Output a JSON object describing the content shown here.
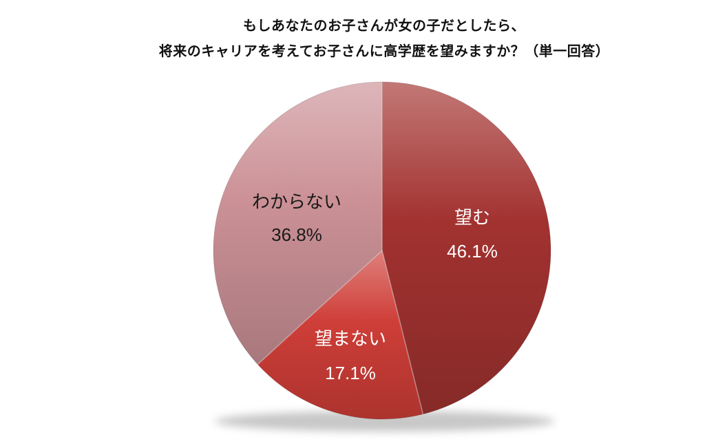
{
  "title": {
    "line1": "もしあなたのお子さんが女の子だとしたら、",
    "line2": "将来のキャリアを考えてお子さんに高学歴を望みますか？（単一回答）"
  },
  "chart_data": {
    "type": "pie",
    "title": "もしあなたのお子さんが女の子だとしたら、将来のキャリアを考えてお子さんに高学歴を望みますか？（単一回答）",
    "start_angle_deg": 0,
    "direction": "clockwise",
    "legend": "none",
    "background_color": "#FFFFFF",
    "labels_on_slices": true,
    "slices": [
      {
        "label": "望む",
        "value": 46.1,
        "display": "46.1%",
        "color": "#A23230",
        "label_color": "#FFFFFF"
      },
      {
        "label": "望まない",
        "value": 17.1,
        "display": "17.1%",
        "color": "#CF3E38",
        "label_color": "#FFFFFF"
      },
      {
        "label": "わからない",
        "value": 36.8,
        "display": "36.8%",
        "color": "#CB9196",
        "label_color": "#1A1A1A"
      }
    ]
  }
}
